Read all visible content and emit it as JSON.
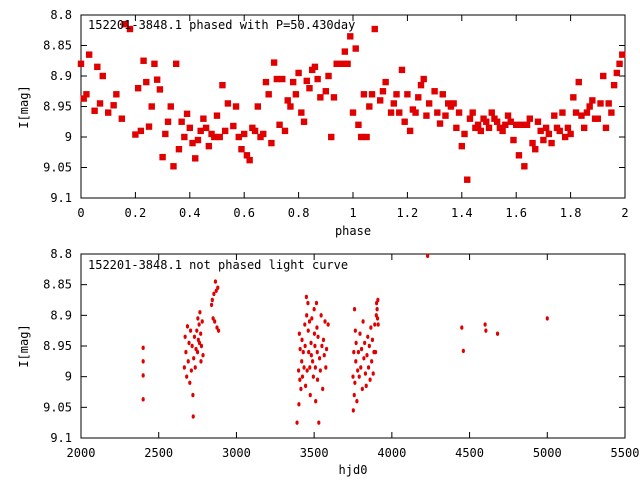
{
  "chart_data": [
    {
      "type": "scatter",
      "title": "152201-3848.1 phased with P=50.430day",
      "xlabel": "phase",
      "ylabel": "I[mag]",
      "xlim": [
        0,
        2
      ],
      "ylim": [
        8.8,
        9.1
      ],
      "y_inverted": true,
      "xticks": [
        "0",
        "0.2",
        "0.4",
        "0.6",
        "0.8",
        "1",
        "1.2",
        "1.4",
        "1.6",
        "1.8",
        "2"
      ],
      "xtick_values": [
        0,
        0.2,
        0.4,
        0.6,
        0.8,
        1.0,
        1.2,
        1.4,
        1.6,
        1.8,
        2.0
      ],
      "yticks": [
        "8.8",
        "8.85",
        "8.9",
        "8.95",
        "9",
        "9.05",
        "9.1"
      ],
      "ytick_values": [
        8.8,
        8.85,
        8.9,
        8.95,
        9.0,
        9.05,
        9.1
      ],
      "color": "#e00000",
      "points": [
        [
          0.0,
          8.88
        ],
        [
          0.01,
          8.937
        ],
        [
          0.02,
          8.93
        ],
        [
          0.03,
          8.865
        ],
        [
          0.05,
          8.957
        ],
        [
          0.06,
          8.885
        ],
        [
          0.07,
          8.945
        ],
        [
          0.08,
          8.9
        ],
        [
          0.1,
          8.96
        ],
        [
          0.12,
          8.948
        ],
        [
          0.13,
          8.93
        ],
        [
          0.15,
          8.97
        ],
        [
          0.16,
          8.815
        ],
        [
          0.18,
          8.823
        ],
        [
          0.2,
          8.996
        ],
        [
          0.21,
          8.92
        ],
        [
          0.22,
          8.99
        ],
        [
          0.23,
          8.875
        ],
        [
          0.24,
          8.91
        ],
        [
          0.25,
          8.983
        ],
        [
          0.26,
          8.95
        ],
        [
          0.27,
          8.88
        ],
        [
          0.28,
          8.906
        ],
        [
          0.29,
          8.922
        ],
        [
          0.3,
          9.033
        ],
        [
          0.31,
          8.995
        ],
        [
          0.32,
          8.975
        ],
        [
          0.33,
          8.95
        ],
        [
          0.34,
          9.048
        ],
        [
          0.35,
          8.88
        ],
        [
          0.36,
          9.02
        ],
        [
          0.37,
          8.975
        ],
        [
          0.38,
          9.0
        ],
        [
          0.39,
          8.962
        ],
        [
          0.4,
          8.985
        ],
        [
          0.41,
          9.01
        ],
        [
          0.42,
          9.035
        ],
        [
          0.43,
          9.005
        ],
        [
          0.44,
          8.99
        ],
        [
          0.45,
          8.97
        ],
        [
          0.46,
          8.985
        ],
        [
          0.47,
          9.015
        ],
        [
          0.48,
          8.995
        ],
        [
          0.49,
          9.0
        ],
        [
          0.5,
          8.965
        ],
        [
          0.51,
          9.0
        ],
        [
          0.52,
          8.915
        ],
        [
          0.53,
          8.99
        ],
        [
          0.54,
          8.945
        ],
        [
          0.56,
          8.982
        ],
        [
          0.57,
          8.95
        ],
        [
          0.58,
          9.0
        ],
        [
          0.59,
          9.02
        ],
        [
          0.6,
          8.995
        ],
        [
          0.61,
          9.03
        ],
        [
          0.62,
          9.038
        ],
        [
          0.63,
          8.985
        ],
        [
          0.64,
          8.99
        ],
        [
          0.65,
          8.95
        ],
        [
          0.66,
          9.0
        ],
        [
          0.67,
          8.995
        ],
        [
          0.68,
          8.91
        ],
        [
          0.69,
          8.93
        ],
        [
          0.7,
          9.01
        ],
        [
          0.71,
          8.878
        ],
        [
          0.72,
          8.905
        ],
        [
          0.73,
          8.98
        ],
        [
          0.74,
          8.905
        ],
        [
          0.75,
          8.99
        ],
        [
          0.76,
          8.94
        ],
        [
          0.77,
          8.95
        ],
        [
          0.78,
          8.91
        ],
        [
          0.79,
          8.93
        ],
        [
          0.8,
          8.895
        ],
        [
          0.81,
          8.96
        ],
        [
          0.82,
          8.975
        ],
        [
          0.83,
          8.908
        ],
        [
          0.84,
          8.92
        ],
        [
          0.85,
          8.89
        ],
        [
          0.86,
          8.885
        ],
        [
          0.87,
          8.905
        ],
        [
          0.88,
          8.935
        ],
        [
          0.9,
          8.925
        ],
        [
          0.91,
          8.9
        ],
        [
          0.92,
          9.0
        ],
        [
          0.93,
          8.935
        ],
        [
          0.94,
          8.88
        ],
        [
          0.96,
          8.88
        ],
        [
          0.97,
          8.86
        ],
        [
          0.98,
          8.88
        ],
        [
          0.99,
          8.835
        ],
        [
          1.0,
          8.96
        ],
        [
          1.01,
          8.855
        ],
        [
          1.02,
          8.98
        ],
        [
          1.03,
          9.0
        ],
        [
          1.04,
          8.93
        ],
        [
          1.05,
          9.0
        ],
        [
          1.06,
          8.95
        ],
        [
          1.07,
          8.93
        ],
        [
          1.08,
          8.823
        ],
        [
          1.1,
          8.94
        ],
        [
          1.11,
          8.925
        ],
        [
          1.12,
          8.91
        ],
        [
          1.14,
          8.96
        ],
        [
          1.15,
          8.945
        ],
        [
          1.16,
          8.93
        ],
        [
          1.17,
          8.96
        ],
        [
          1.18,
          8.89
        ],
        [
          1.19,
          8.975
        ],
        [
          1.2,
          8.93
        ],
        [
          1.21,
          8.99
        ],
        [
          1.22,
          8.955
        ],
        [
          1.23,
          8.96
        ],
        [
          1.24,
          8.935
        ],
        [
          1.25,
          8.915
        ],
        [
          1.26,
          8.905
        ],
        [
          1.27,
          8.965
        ],
        [
          1.28,
          8.945
        ],
        [
          1.3,
          8.925
        ],
        [
          1.31,
          8.96
        ],
        [
          1.32,
          8.978
        ],
        [
          1.33,
          8.93
        ],
        [
          1.34,
          8.965
        ],
        [
          1.35,
          8.945
        ],
        [
          1.36,
          8.95
        ],
        [
          1.37,
          8.945
        ],
        [
          1.38,
          8.985
        ],
        [
          1.39,
          8.96
        ],
        [
          1.4,
          9.015
        ],
        [
          1.41,
          8.995
        ],
        [
          1.42,
          9.07
        ],
        [
          1.43,
          8.97
        ],
        [
          1.44,
          8.96
        ],
        [
          1.45,
          8.985
        ],
        [
          1.46,
          8.98
        ],
        [
          1.47,
          8.99
        ],
        [
          1.48,
          8.97
        ],
        [
          1.49,
          8.975
        ],
        [
          1.5,
          8.985
        ],
        [
          1.51,
          8.96
        ],
        [
          1.52,
          8.97
        ],
        [
          1.53,
          8.975
        ],
        [
          1.54,
          8.985
        ],
        [
          1.55,
          8.99
        ],
        [
          1.56,
          8.98
        ],
        [
          1.57,
          8.965
        ],
        [
          1.58,
          8.975
        ],
        [
          1.59,
          9.005
        ],
        [
          1.6,
          8.98
        ],
        [
          1.61,
          9.03
        ],
        [
          1.62,
          8.98
        ],
        [
          1.63,
          9.048
        ],
        [
          1.64,
          8.98
        ],
        [
          1.65,
          8.97
        ],
        [
          1.66,
          9.01
        ],
        [
          1.67,
          9.02
        ],
        [
          1.68,
          8.975
        ],
        [
          1.69,
          8.99
        ],
        [
          1.7,
          9.005
        ],
        [
          1.71,
          8.985
        ],
        [
          1.72,
          8.995
        ],
        [
          1.73,
          9.01
        ],
        [
          1.74,
          8.965
        ],
        [
          1.75,
          8.985
        ],
        [
          1.76,
          8.99
        ],
        [
          1.77,
          8.96
        ],
        [
          1.78,
          9.0
        ],
        [
          1.79,
          8.985
        ],
        [
          1.8,
          8.995
        ],
        [
          1.81,
          8.935
        ],
        [
          1.82,
          8.96
        ],
        [
          1.83,
          8.91
        ],
        [
          1.84,
          8.965
        ],
        [
          1.85,
          8.985
        ],
        [
          1.86,
          8.96
        ],
        [
          1.87,
          8.95
        ],
        [
          1.88,
          8.94
        ],
        [
          1.89,
          8.97
        ],
        [
          1.9,
          8.97
        ],
        [
          1.91,
          8.945
        ],
        [
          1.92,
          8.9
        ],
        [
          1.93,
          8.985
        ],
        [
          1.94,
          8.945
        ],
        [
          1.95,
          8.96
        ],
        [
          1.96,
          8.915
        ],
        [
          1.97,
          8.895
        ],
        [
          1.98,
          8.88
        ],
        [
          1.99,
          8.865
        ]
      ]
    },
    {
      "type": "scatter",
      "title": "152201-3848.1 not phased light curve",
      "xlabel": "hjd0",
      "ylabel": "I[mag]",
      "xlim": [
        2000,
        5500
      ],
      "ylim": [
        8.8,
        9.1
      ],
      "y_inverted": true,
      "xticks": [
        "2000",
        "2500",
        "3000",
        "3500",
        "4000",
        "4500",
        "5000",
        "5500"
      ],
      "xtick_values": [
        2000,
        2500,
        3000,
        3500,
        4000,
        4500,
        5000,
        5500
      ],
      "yticks": [
        "8.8",
        "8.85",
        "8.9",
        "8.95",
        "9",
        "9.05",
        "9.1"
      ],
      "ytick_values": [
        8.8,
        8.85,
        8.9,
        8.95,
        9.0,
        9.05,
        9.1
      ],
      "color": "#e00000",
      "points": [
        [
          2400,
          8.953
        ],
        [
          2400,
          8.975
        ],
        [
          2400,
          8.998
        ],
        [
          2400,
          9.037
        ],
        [
          2665,
          8.985
        ],
        [
          2670,
          8.935
        ],
        [
          2675,
          8.96
        ],
        [
          2680,
          9.0
        ],
        [
          2685,
          8.918
        ],
        [
          2690,
          8.975
        ],
        [
          2695,
          8.945
        ],
        [
          2700,
          9.01
        ],
        [
          2705,
          8.925
        ],
        [
          2710,
          8.99
        ],
        [
          2715,
          8.95
        ],
        [
          2720,
          9.03
        ],
        [
          2722,
          9.065
        ],
        [
          2725,
          8.97
        ],
        [
          2730,
          8.935
        ],
        [
          2735,
          8.985
        ],
        [
          2740,
          8.955
        ],
        [
          2745,
          8.925
        ],
        [
          2750,
          8.96
        ],
        [
          2752,
          8.905
        ],
        [
          2755,
          8.94
        ],
        [
          2760,
          8.915
        ],
        [
          2762,
          8.945
        ],
        [
          2765,
          8.895
        ],
        [
          2770,
          8.93
        ],
        [
          2772,
          8.975
        ],
        [
          2775,
          8.95
        ],
        [
          2780,
          8.91
        ],
        [
          2785,
          8.965
        ],
        [
          2840,
          8.883
        ],
        [
          2845,
          8.875
        ],
        [
          2850,
          8.905
        ],
        [
          2855,
          8.865
        ],
        [
          2860,
          8.91
        ],
        [
          2865,
          8.845
        ],
        [
          2870,
          8.86
        ],
        [
          2875,
          8.92
        ],
        [
          2880,
          8.855
        ],
        [
          2885,
          8.925
        ],
        [
          3390,
          9.075
        ],
        [
          3400,
          8.99
        ],
        [
          3402,
          9.045
        ],
        [
          3405,
          8.93
        ],
        [
          3408,
          9.005
        ],
        [
          3410,
          8.955
        ],
        [
          3415,
          9.02
        ],
        [
          3420,
          8.975
        ],
        [
          3422,
          8.94
        ],
        [
          3425,
          9.0
        ],
        [
          3430,
          8.96
        ],
        [
          3435,
          8.985
        ],
        [
          3440,
          8.915
        ],
        [
          3442,
          8.95
        ],
        [
          3445,
          9.015
        ],
        [
          3450,
          8.87
        ],
        [
          3452,
          8.9
        ],
        [
          3455,
          8.99
        ],
        [
          3460,
          8.88
        ],
        [
          3462,
          8.925
        ],
        [
          3465,
          8.96
        ],
        [
          3470,
          8.91
        ],
        [
          3472,
          8.985
        ],
        [
          3475,
          9.03
        ],
        [
          3480,
          8.945
        ],
        [
          3482,
          8.965
        ],
        [
          3485,
          8.905
        ],
        [
          3490,
          8.975
        ],
        [
          3495,
          9.0
        ],
        [
          3500,
          8.89
        ],
        [
          3502,
          8.93
        ],
        [
          3505,
          8.95
        ],
        [
          3508,
          8.985
        ],
        [
          3510,
          9.04
        ],
        [
          3515,
          8.88
        ],
        [
          3518,
          8.92
        ],
        [
          3520,
          8.96
        ],
        [
          3522,
          9.005
        ],
        [
          3525,
          8.935
        ],
        [
          3530,
          9.075
        ],
        [
          3535,
          8.97
        ],
        [
          3540,
          8.99
        ],
        [
          3545,
          8.9
        ],
        [
          3550,
          8.95
        ],
        [
          3555,
          9.02
        ],
        [
          3560,
          8.94
        ],
        [
          3565,
          8.965
        ],
        [
          3570,
          8.91
        ],
        [
          3575,
          8.985
        ],
        [
          3580,
          8.955
        ],
        [
          3590,
          8.915
        ],
        [
          3750,
          9.0
        ],
        [
          3752,
          9.055
        ],
        [
          3755,
          8.96
        ],
        [
          3758,
          9.03
        ],
        [
          3760,
          8.89
        ],
        [
          3762,
          9.01
        ],
        [
          3765,
          8.925
        ],
        [
          3768,
          8.975
        ],
        [
          3770,
          8.945
        ],
        [
          3775,
          9.04
        ],
        [
          3780,
          8.99
        ],
        [
          3785,
          8.96
        ],
        [
          3790,
          9.0
        ],
        [
          3795,
          8.93
        ],
        [
          3800,
          8.985
        ],
        [
          3805,
          8.955
        ],
        [
          3810,
          9.02
        ],
        [
          3815,
          8.91
        ],
        [
          3820,
          8.97
        ],
        [
          3825,
          8.945
        ],
        [
          3830,
          8.995
        ],
        [
          3835,
          9.015
        ],
        [
          3840,
          8.965
        ],
        [
          3845,
          8.935
        ],
        [
          3850,
          8.985
        ],
        [
          3855,
          8.95
        ],
        [
          3860,
          9.005
        ],
        [
          3865,
          8.92
        ],
        [
          3870,
          8.975
        ],
        [
          3875,
          8.94
        ],
        [
          3880,
          8.995
        ],
        [
          3885,
          8.96
        ],
        [
          3890,
          8.915
        ],
        [
          3895,
          8.96
        ],
        [
          3900,
          8.9
        ],
        [
          3902,
          8.88
        ],
        [
          3905,
          8.89
        ],
        [
          3908,
          8.905
        ],
        [
          3910,
          8.875
        ],
        [
          3912,
          8.915
        ],
        [
          4230,
          8.803
        ],
        [
          4450,
          8.92
        ],
        [
          4460,
          8.958
        ],
        [
          4600,
          8.915
        ],
        [
          4605,
          8.925
        ],
        [
          4680,
          8.93
        ],
        [
          5000,
          8.905
        ]
      ]
    }
  ]
}
